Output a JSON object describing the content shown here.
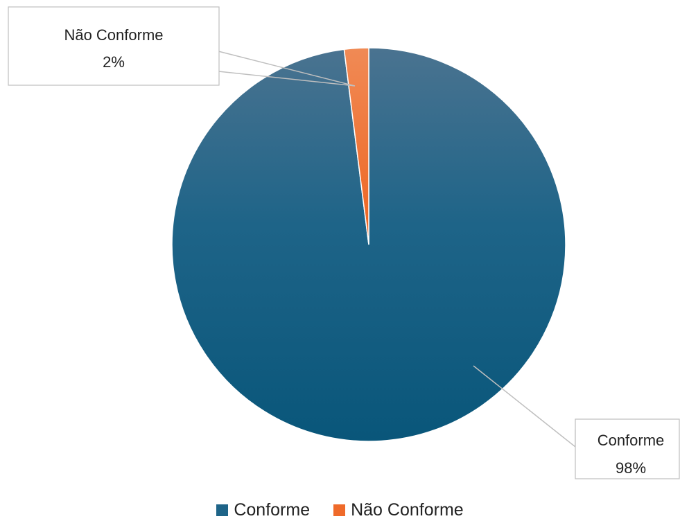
{
  "chart_data": {
    "type": "pie",
    "title": "",
    "slices": [
      {
        "name": "Conforme",
        "value": 98,
        "label": "98%",
        "color": "#0b5a7e"
      },
      {
        "name": "Não Conforme",
        "value": 2,
        "label": "2%",
        "color": "#ef6a2a"
      }
    ],
    "legend_position": "bottom"
  }
}
